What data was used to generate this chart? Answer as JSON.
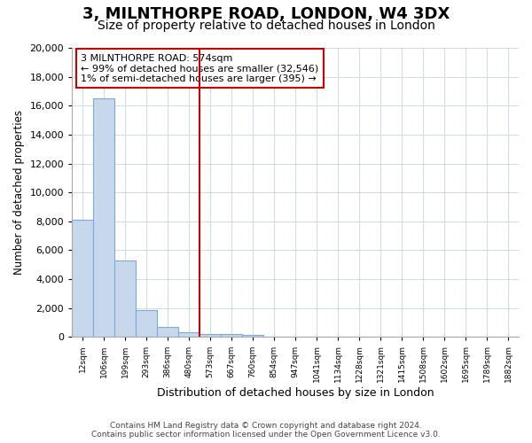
{
  "title": "3, MILNTHORPE ROAD, LONDON, W4 3DX",
  "subtitle": "Size of property relative to detached houses in London",
  "xlabel": "Distribution of detached houses by size in London",
  "ylabel": "Number of detached properties",
  "bar_color": "#c8d8ec",
  "bar_edge_color": "#7baad4",
  "categories": [
    "12sqm",
    "106sqm",
    "199sqm",
    "293sqm",
    "386sqm",
    "480sqm",
    "573sqm",
    "667sqm",
    "760sqm",
    "854sqm",
    "947sqm",
    "1041sqm",
    "1134sqm",
    "1228sqm",
    "1321sqm",
    "1415sqm",
    "1508sqm",
    "1602sqm",
    "1695sqm",
    "1789sqm",
    "1882sqm"
  ],
  "values": [
    8100,
    16500,
    5300,
    1850,
    720,
    310,
    200,
    200,
    130,
    0,
    0,
    0,
    0,
    0,
    0,
    0,
    0,
    0,
    0,
    0,
    0
  ],
  "marker_line_color": "#cc0000",
  "marker_bar_index": 6,
  "annotation_line1": "3 MILNTHORPE ROAD: 574sqm",
  "annotation_line2": "← 99% of detached houses are smaller (32,546)",
  "annotation_line3": "1% of semi-detached houses are larger (395) →",
  "ylim": [
    0,
    20000
  ],
  "yticks": [
    0,
    2000,
    4000,
    6000,
    8000,
    10000,
    12000,
    14000,
    16000,
    18000,
    20000
  ],
  "footer_line1": "Contains HM Land Registry data © Crown copyright and database right 2024.",
  "footer_line2": "Contains public sector information licensed under the Open Government Licence v3.0.",
  "background_color": "#ffffff",
  "grid_color": "#d0dce8",
  "title_fontsize": 13,
  "subtitle_fontsize": 10
}
